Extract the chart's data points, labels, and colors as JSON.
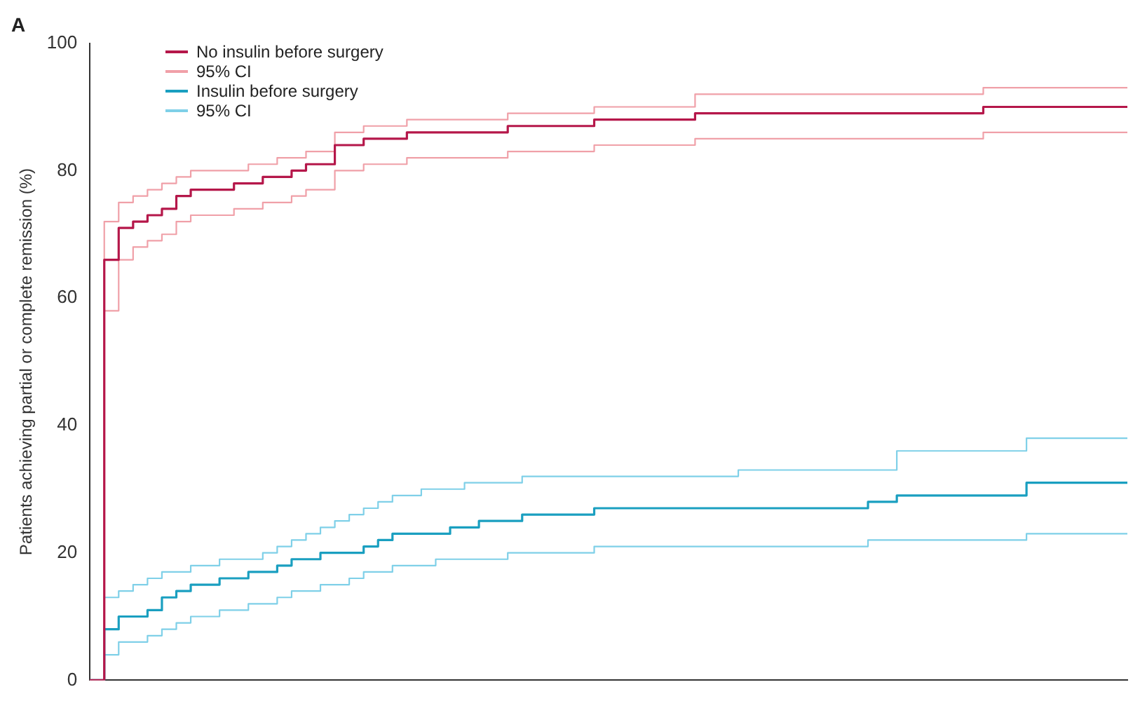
{
  "chart_data": {
    "type": "step",
    "title": "A",
    "ylabel": "Patients achieving partial or complete remission (%)",
    "categories": [
      null,
      null,
      null,
      null,
      null,
      null,
      null,
      null,
      null,
      null,
      null,
      null,
      null,
      null,
      null,
      null,
      null,
      null,
      null,
      null,
      null,
      null,
      null,
      null,
      null,
      null,
      null,
      null,
      null,
      null,
      null,
      null,
      null,
      null,
      null,
      null,
      null,
      null,
      null,
      null,
      null,
      null,
      null,
      null,
      null,
      null,
      null,
      null,
      null,
      null,
      null,
      null,
      null,
      null,
      null,
      null,
      null,
      null,
      null,
      null,
      null,
      null,
      null,
      null,
      null,
      null,
      null,
      null,
      null,
      null,
      null,
      null,
      null
    ],
    "ylim": [
      0,
      100
    ],
    "yticks": [
      0,
      20,
      40,
      60,
      80,
      100
    ],
    "tick_labels": "y",
    "grid": false,
    "legend": "top left",
    "marker": "none",
    "line_style": "solid",
    "series": [
      {
        "name": "No insulin before surgery",
        "color": "#b5174a",
        "values": [
          0,
          66,
          71,
          72,
          73,
          74,
          76,
          77,
          77,
          77,
          78,
          78,
          79,
          79,
          80,
          81,
          81,
          84,
          84,
          85,
          85,
          85,
          86,
          86,
          86,
          86,
          86,
          86,
          86,
          87,
          87,
          87,
          87,
          87,
          87,
          88,
          88,
          88,
          88,
          88,
          88,
          88,
          89,
          89,
          89,
          89,
          89,
          89,
          89,
          89,
          89,
          89,
          89,
          89,
          89,
          89,
          89,
          89,
          89,
          89,
          89,
          89,
          90,
          90,
          90,
          90,
          90,
          90,
          90,
          90,
          90,
          90,
          90
        ]
      },
      {
        "name": "95% CI",
        "color": "#f0a0a8",
        "values": [
          0,
          72,
          75,
          76,
          77,
          78,
          79,
          80,
          80,
          80,
          80,
          81,
          81,
          82,
          82,
          83,
          83,
          86,
          86,
          87,
          87,
          87,
          88,
          88,
          88,
          88,
          88,
          88,
          88,
          89,
          89,
          89,
          89,
          89,
          89,
          90,
          90,
          90,
          90,
          90,
          90,
          90,
          92,
          92,
          92,
          92,
          92,
          92,
          92,
          92,
          92,
          92,
          92,
          92,
          92,
          92,
          92,
          92,
          92,
          92,
          92,
          92,
          93,
          93,
          93,
          93,
          93,
          93,
          93,
          93,
          93,
          93,
          93
        ]
      },
      {
        "color": "#f0a0a8",
        "values": [
          0,
          58,
          66,
          68,
          69,
          70,
          72,
          73,
          73,
          73,
          74,
          74,
          75,
          75,
          76,
          77,
          77,
          80,
          80,
          81,
          81,
          81,
          82,
          82,
          82,
          82,
          82,
          82,
          82,
          83,
          83,
          83,
          83,
          83,
          83,
          84,
          84,
          84,
          84,
          84,
          84,
          84,
          85,
          85,
          85,
          85,
          85,
          85,
          85,
          85,
          85,
          85,
          85,
          85,
          85,
          85,
          85,
          85,
          85,
          85,
          85,
          85,
          86,
          86,
          86,
          86,
          86,
          86,
          86,
          86,
          86,
          86,
          86
        ]
      },
      {
        "name": "Insulin before surgery",
        "color": "#1a9fc0",
        "values": [
          0,
          8,
          10,
          10,
          11,
          13,
          14,
          15,
          15,
          16,
          16,
          17,
          17,
          18,
          19,
          19,
          20,
          20,
          20,
          21,
          22,
          23,
          23,
          23,
          23,
          24,
          24,
          25,
          25,
          25,
          26,
          26,
          26,
          26,
          26,
          27,
          27,
          27,
          27,
          27,
          27,
          27,
          27,
          27,
          27,
          27,
          27,
          27,
          27,
          27,
          27,
          27,
          27,
          27,
          28,
          28,
          29,
          29,
          29,
          29,
          29,
          29,
          29,
          29,
          29,
          31,
          31,
          31,
          31,
          31,
          31,
          31,
          31
        ]
      },
      {
        "name": "95% CI",
        "color": "#7fd0e8",
        "values": [
          0,
          13,
          14,
          15,
          16,
          17,
          17,
          18,
          18,
          19,
          19,
          19,
          20,
          21,
          22,
          23,
          24,
          25,
          26,
          27,
          28,
          29,
          29,
          30,
          30,
          30,
          31,
          31,
          31,
          31,
          32,
          32,
          32,
          32,
          32,
          32,
          32,
          32,
          32,
          32,
          32,
          32,
          32,
          32,
          32,
          33,
          33,
          33,
          33,
          33,
          33,
          33,
          33,
          33,
          33,
          33,
          36,
          36,
          36,
          36,
          36,
          36,
          36,
          36,
          36,
          38,
          38,
          38,
          38,
          38,
          38,
          38,
          38
        ]
      },
      {
        "color": "#7fd0e8",
        "values": [
          0,
          4,
          6,
          6,
          7,
          8,
          9,
          10,
          10,
          11,
          11,
          12,
          12,
          13,
          14,
          14,
          15,
          15,
          16,
          17,
          17,
          18,
          18,
          18,
          19,
          19,
          19,
          19,
          19,
          20,
          20,
          20,
          20,
          20,
          20,
          21,
          21,
          21,
          21,
          21,
          21,
          21,
          21,
          21,
          21,
          21,
          21,
          21,
          21,
          21,
          21,
          21,
          21,
          21,
          22,
          22,
          22,
          22,
          22,
          22,
          22,
          22,
          22,
          22,
          22,
          23,
          23,
          23,
          23,
          23,
          23,
          23,
          23
        ]
      }
    ]
  }
}
